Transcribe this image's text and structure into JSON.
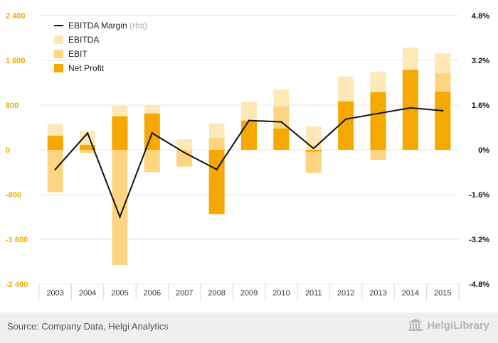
{
  "chart_data": {
    "type": "bar",
    "categories": [
      "2003",
      "2004",
      "2005",
      "2006",
      "2007",
      "2008",
      "2009",
      "2010",
      "2011",
      "2012",
      "2013",
      "2014",
      "2015"
    ],
    "series": [
      {
        "name": "EBITDA",
        "kind": "bar",
        "axis": "left",
        "values": [
          460,
          340,
          790,
          800,
          190,
          470,
          860,
          1080,
          420,
          1310,
          1400,
          1830,
          1730
        ]
      },
      {
        "name": "EBIT",
        "kind": "bar",
        "axis": "left",
        "values": [
          -760,
          -60,
          -2060,
          -400,
          -300,
          210,
          530,
          780,
          -410,
          880,
          -180,
          1430,
          1370
        ]
      },
      {
        "name": "Net Profit",
        "kind": "bar",
        "axis": "left",
        "values": [
          250,
          90,
          600,
          650,
          0,
          -1150,
          520,
          380,
          -30,
          860,
          1030,
          1430,
          1040
        ]
      },
      {
        "name": "EBITDA Margin",
        "unit": "(rhs)",
        "kind": "line",
        "axis": "right",
        "values": [
          -0.7,
          0.6,
          -2.4,
          0.6,
          -0.1,
          -0.7,
          1.05,
          1.0,
          0.05,
          1.1,
          1.3,
          1.5,
          1.4
        ]
      }
    ],
    "ylim_left": [
      -2400,
      2400
    ],
    "yticks_left": [
      "2 400",
      "1 600",
      "800",
      "0",
      "-800",
      "-1 600",
      "-2 400"
    ],
    "ylim_right": [
      -4.8,
      4.8
    ],
    "yticks_right": [
      "4.8%",
      "3.2%",
      "1.6%",
      "0%",
      "-1.6%",
      "-3.2%",
      "-4.8%"
    ],
    "grid": true,
    "legend_placement": "top-left",
    "title": "",
    "xlabel": "",
    "ylabel": ""
  },
  "colors": {
    "ebitda": "#fde8b8",
    "ebit": "#fdd580",
    "net_profit": "#f5a800",
    "margin_line": "#111111",
    "left_ticks": "#f2a900",
    "right_ticks": "#111111",
    "grid": "#e6e6e6"
  },
  "legend": [
    {
      "label": "EBITDA Margin",
      "unit": "(rhs)",
      "kind": "line",
      "color": "#111111"
    },
    {
      "label": "EBITDA",
      "kind": "square",
      "color": "#fde8b8"
    },
    {
      "label": "EBIT",
      "kind": "square",
      "color": "#fdd580"
    },
    {
      "label": "Net Profit",
      "kind": "square",
      "color": "#f5a800"
    }
  ],
  "footer": {
    "source": "Source: Company Data, Helgi Analytics",
    "brand": "HelgiLibrary",
    "brand_icon": "library-building-icon"
  }
}
